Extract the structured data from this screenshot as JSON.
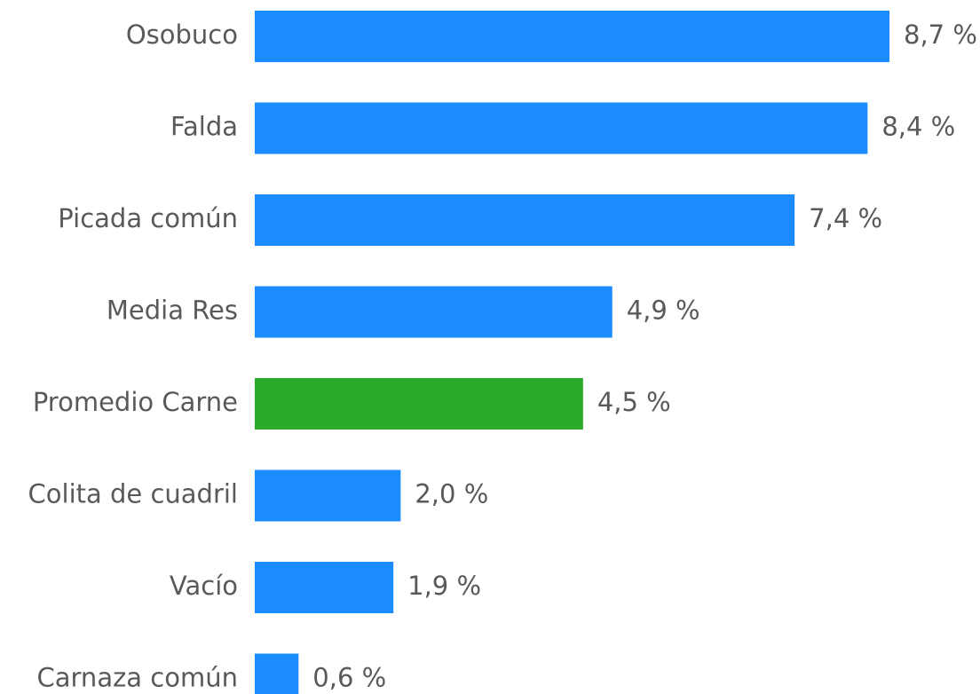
{
  "chart_data": {
    "type": "barh",
    "categories": [
      "Osobuco",
      "Falda",
      "Picada común",
      "Media Res",
      "Promedio Carne",
      "Colita de cuadril",
      "Vacío",
      "Carnaza común"
    ],
    "values": [
      8.7,
      8.4,
      7.4,
      4.9,
      4.5,
      2.0,
      1.9,
      0.6
    ],
    "value_labels": [
      "8,7 %",
      "8,4 %",
      "7,4 %",
      "4,9 %",
      "4,5 %",
      "2,0 %",
      "1,9 %",
      "0,6 %"
    ],
    "colors": [
      "#1a8cff",
      "#1a8cff",
      "#1a8cff",
      "#1a8cff",
      "#2aab2a",
      "#1a8cff",
      "#1a8cff",
      "#1a8cff"
    ]
  }
}
